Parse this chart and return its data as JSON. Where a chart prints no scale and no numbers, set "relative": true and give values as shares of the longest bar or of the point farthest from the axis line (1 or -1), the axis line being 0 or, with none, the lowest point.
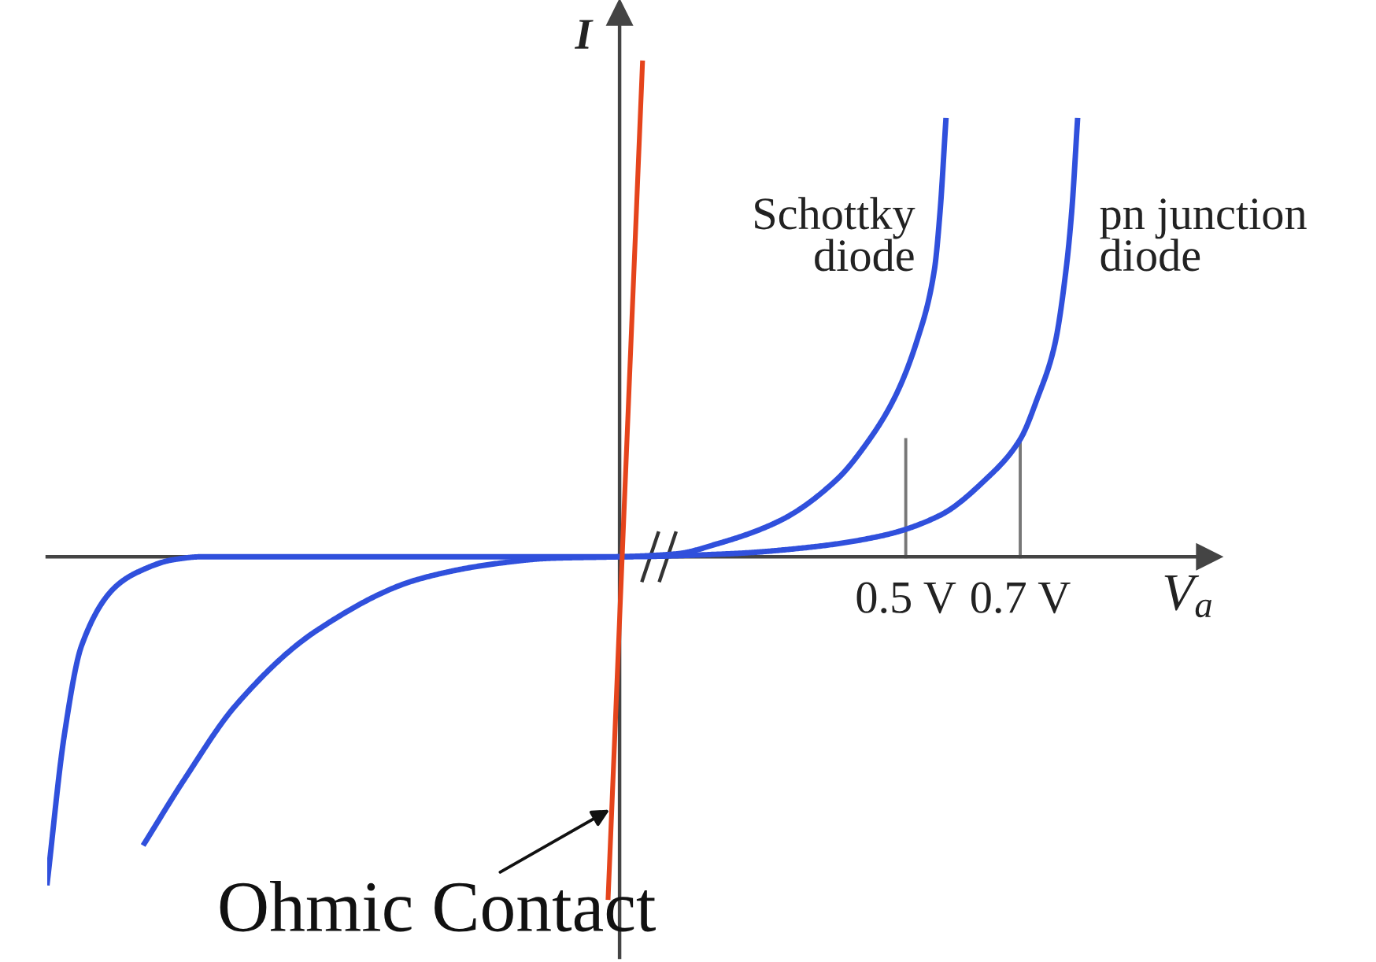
{
  "chart_data": {
    "type": "line",
    "relative": true,
    "xlabel": "V$_{a}$",
    "ylabel": "I",
    "xlim": [
      -1.0,
      1.03
    ],
    "xticks": [
      {
        "value": 0.5,
        "label": "0.5 V"
      },
      {
        "value": 0.7,
        "label": "0.7 V"
      }
    ],
    "series": [
      {
        "name": "Schottky\ndiode",
        "color": "#3050dc",
        "x": [
          -0.83,
          -0.76,
          -0.67,
          -0.53,
          -0.35,
          -0.21,
          -0.12,
          0,
          0.1,
          0.17,
          0.28,
          0.38,
          0.43,
          0.48,
          0.52,
          0.55,
          0.56,
          0.57
        ],
        "values": [
          -0.58,
          -0.45,
          -0.3,
          -0.15,
          -0.045,
          -0.013,
          -0.003,
          0,
          0.006,
          0.026,
          0.073,
          0.157,
          0.227,
          0.321,
          0.439,
          0.581,
          0.7,
          0.883
        ]
      },
      {
        "name": "pn junction\ndiode",
        "color": "#3050dc",
        "x": [
          -1.0,
          -0.97,
          -0.94,
          -0.88,
          -0.84,
          -0.78,
          -0.73,
          0,
          0.19,
          0.33,
          0.46,
          0.56,
          0.64,
          0.7,
          0.73,
          0.76,
          0.78,
          0.79,
          0.8
        ],
        "values": [
          -0.66,
          -0.36,
          -0.18,
          -0.06,
          -0.03,
          -0.006,
          0,
          0,
          0.006,
          0.019,
          0.043,
          0.084,
          0.157,
          0.238,
          0.321,
          0.428,
          0.581,
          0.7,
          0.883
        ]
      },
      {
        "color": "#e5441c",
        "x": [
          -0.02,
          0.04
        ],
        "values": [
          -0.69,
          1.0
        ]
      }
    ],
    "ref_lines": [
      {
        "axis": "x",
        "value": 0.5,
        "color": "#777777"
      },
      {
        "axis": "x",
        "value": 0.7,
        "color": "#777777"
      }
    ],
    "annotations": [
      {
        "text": "Ohmic Contact",
        "x": -0.014,
        "y": -0.51
      }
    ],
    "legend": false,
    "line_style": "solid"
  }
}
